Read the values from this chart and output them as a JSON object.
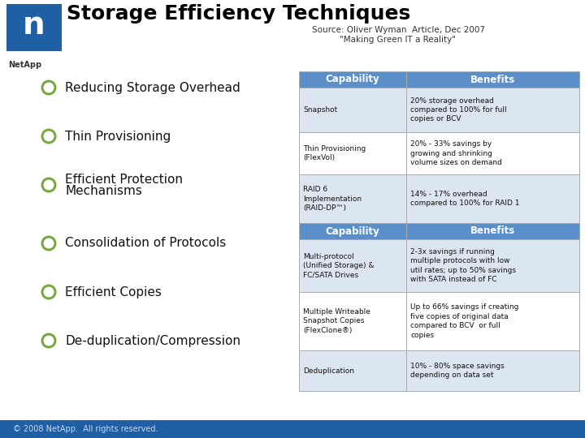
{
  "title": "Storage Efficiency Techniques",
  "source_line1": "Source: Oliver Wyman  Article, Dec 2007",
  "source_line2": "\"Making Green IT a Reality\"",
  "bullet_items": [
    "Reducing Storage Overhead",
    "Thin Provisioning",
    "Efficient Protection\nMechanisms",
    "Consolidation of Protocols",
    "Efficient Copies",
    "De-duplication/Compression"
  ],
  "table1_header": [
    "Capability",
    "Benefits"
  ],
  "table1_rows": [
    [
      "Snapshot",
      "20% storage overhead\ncompared to 100% for full\ncopies or BCV"
    ],
    [
      "Thin Provisioning\n(FlexVol)",
      "20% - 33% savings by\ngrowing and shrinking\nvolume sizes on demand"
    ],
    [
      "RAID 6\nImplementation\n(RAID-DP™)",
      "14% - 17% overhead\ncompared to 100% for RAID 1"
    ]
  ],
  "table2_header": [
    "Capability",
    "Benefits"
  ],
  "table2_rows": [
    [
      "Multi-protocol\n(Unified Storage) &\nFC/SATA Drives",
      "2-3x savings if running\nmultiple protocols with low\nutil rates; up to 50% savings\nwith SATA instead of FC"
    ],
    [
      "Multiple Writeable\nSnapshot Copies\n(FlexClone®)",
      "Up to 66% savings if creating\nfive copies of original data\ncompared to BCV  or full\ncopies"
    ],
    [
      "Deduplication",
      "10% - 80% space savings\ndepending on data set"
    ]
  ],
  "header_bg": "#5b8fc9",
  "header_fg": "#ffffff",
  "row_bg_light": "#dce6f1",
  "row_bg_white": "#ffffff",
  "table_border": "#aaaaaa",
  "footer_bg": "#1f5fa6",
  "footer_text": "© 2008 NetApp.  All rights reserved.",
  "footer_fg": "#c8d8ee",
  "title_color": "#000000",
  "bullet_color": "#7aa843",
  "bg_color": "#ffffff",
  "netapp_blue": "#1f5fa6"
}
